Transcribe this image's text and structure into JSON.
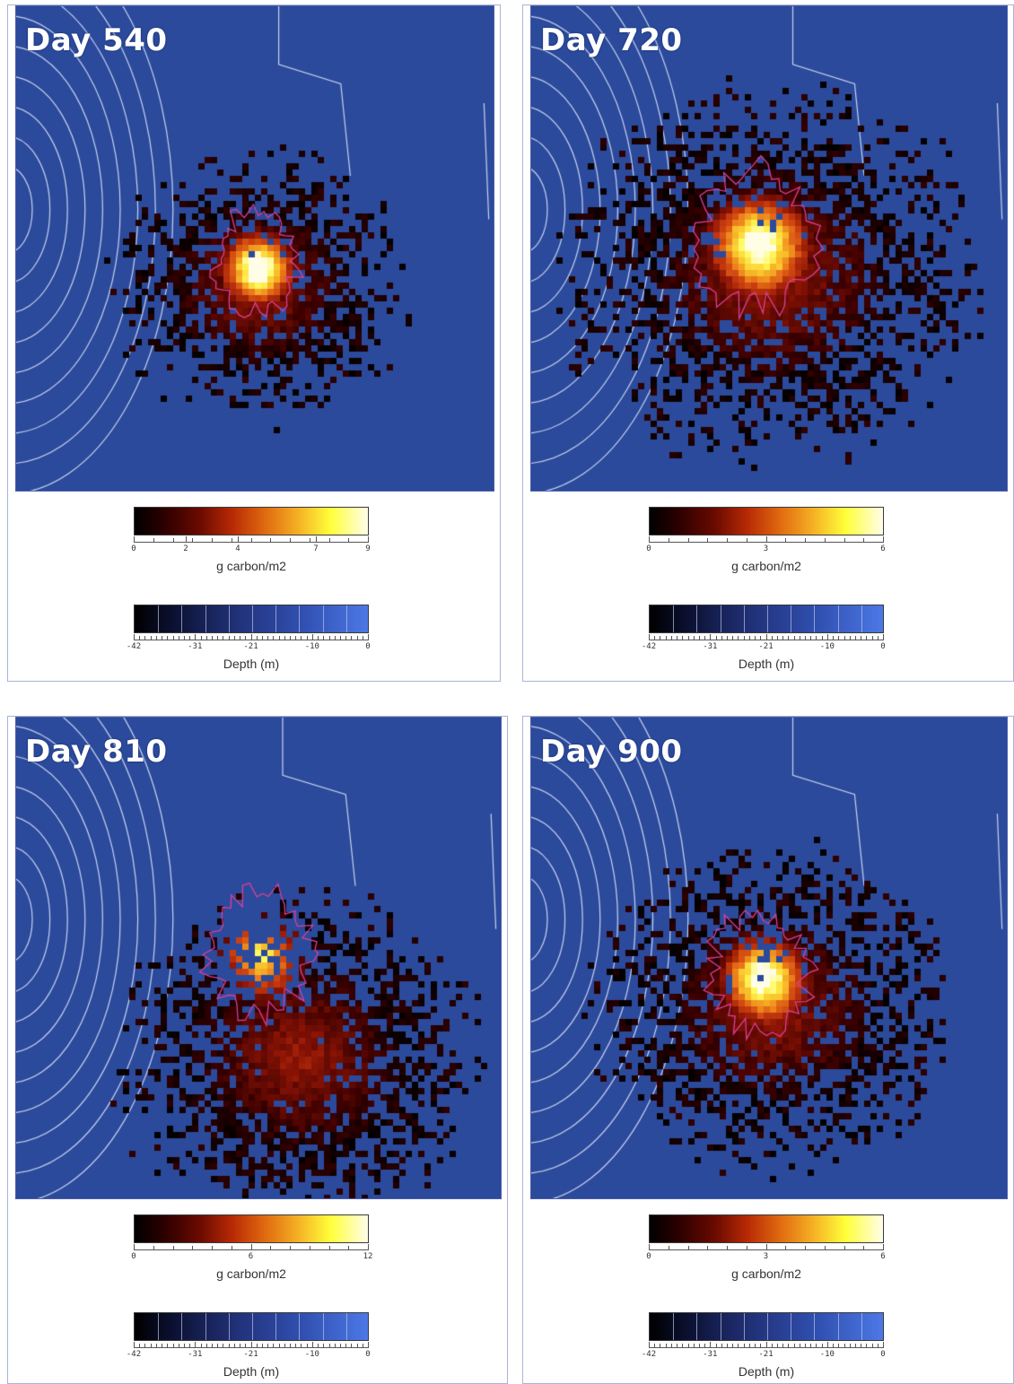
{
  "panels": [
    {
      "day_label": "Day 540",
      "carbon_legend": {
        "ticks": [
          "0",
          "2",
          "4",
          "7",
          "9"
        ],
        "tick_values": [
          0,
          2,
          4,
          7,
          9
        ],
        "max": 9,
        "unit": "g carbon/m2"
      },
      "depth_legend": {
        "ticks": [
          "-42",
          "-31",
          "-21",
          "-10",
          "0"
        ],
        "tick_values": [
          -42,
          -31,
          -21,
          -10,
          0
        ],
        "unit": "Depth (m)"
      },
      "plume": {
        "center": [
          0.5,
          0.57
        ],
        "hotspot": [
          0.5,
          0.53
        ],
        "spread": 0.3,
        "tail": "south"
      }
    },
    {
      "day_label": "Day 720",
      "carbon_legend": {
        "ticks": [
          "0",
          "3",
          "6"
        ],
        "tick_values": [
          0,
          3,
          6
        ],
        "max": 6,
        "unit": "g carbon/m2"
      },
      "depth_legend": {
        "ticks": [
          "-42",
          "-31",
          "-21",
          "-10",
          "0"
        ],
        "tick_values": [
          -42,
          -31,
          -21,
          -10,
          0
        ],
        "unit": "Depth (m)"
      },
      "plume": {
        "center": [
          0.5,
          0.55
        ],
        "hotspot": [
          0.47,
          0.48
        ],
        "spread": 0.42,
        "tail": "wide"
      }
    },
    {
      "day_label": "Day 810",
      "carbon_legend": {
        "ticks": [
          "0",
          "6",
          "12"
        ],
        "tick_values": [
          0,
          6,
          12
        ],
        "max": 12,
        "unit": "g carbon/m2"
      },
      "depth_legend": {
        "ticks": [
          "-42",
          "-31",
          "-21",
          "-10",
          "0"
        ],
        "tick_values": [
          -42,
          -31,
          -21,
          -10,
          0
        ],
        "unit": "Depth (m)"
      },
      "plume": {
        "center": [
          0.58,
          0.7
        ],
        "hotspot": [
          0.5,
          0.49
        ],
        "spread": 0.36,
        "tail": "southeast"
      }
    },
    {
      "day_label": "Day 900",
      "carbon_legend": {
        "ticks": [
          "0",
          "3",
          "6"
        ],
        "tick_values": [
          0,
          3,
          6
        ],
        "max": 6,
        "unit": "g carbon/m2"
      },
      "depth_legend": {
        "ticks": [
          "-42",
          "-31",
          "-21",
          "-10",
          "0"
        ],
        "tick_values": [
          -42,
          -31,
          -21,
          -10,
          0
        ],
        "unit": "Depth (m)"
      },
      "plume": {
        "center": [
          0.5,
          0.6
        ],
        "hotspot": [
          0.48,
          0.53
        ],
        "spread": 0.36,
        "tail": "south"
      }
    }
  ],
  "colors": {
    "background_water": "#2b4a9c",
    "contour_line": "#c8d2ee",
    "concentration_contour": "#d8409a",
    "panel_border": "#a9b4d6"
  }
}
